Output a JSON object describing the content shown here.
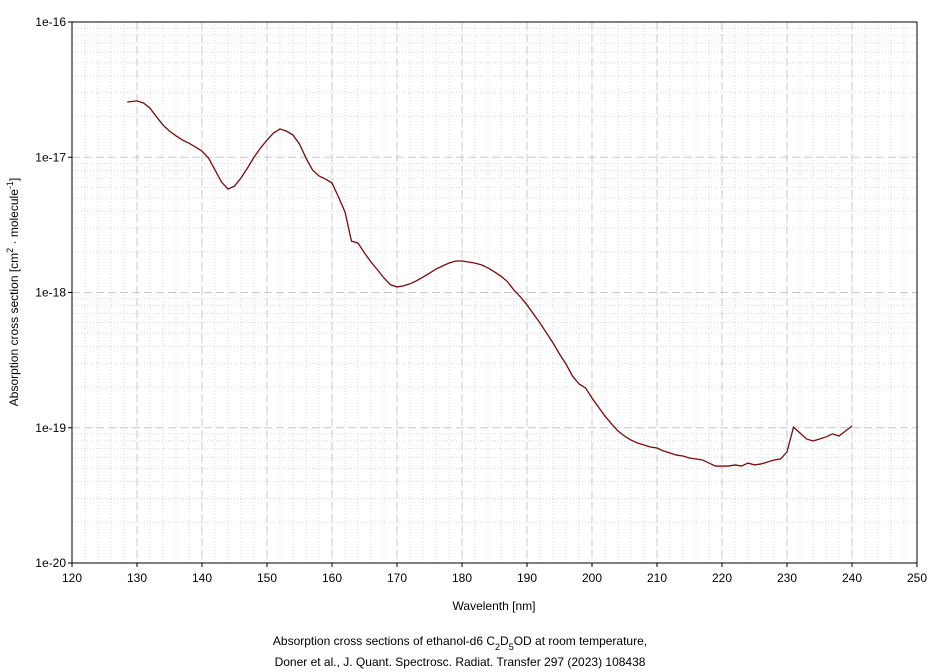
{
  "chart_data": {
    "type": "line",
    "y_label": [
      {
        "text": "Absorption cross section [cm"
      },
      {
        "text": "2",
        "shift": "super"
      },
      {
        "text": " · molecule"
      },
      {
        "text": "-1",
        "shift": "super"
      },
      {
        "text": "]"
      }
    ],
    "x_label": "Wavelenth [nm]",
    "caption": [
      [
        {
          "text": "Absorption cross sections of ethanol-d6 C"
        },
        {
          "text": "2",
          "shift": "sub"
        },
        {
          "text": "D"
        },
        {
          "text": "5",
          "shift": "sub"
        },
        {
          "text": "OD at room temperature,"
        }
      ],
      [
        {
          "text": "Doner et al., J. Quant. Spectrosc. Radiat. Transfer 297 (2023) 108438"
        }
      ]
    ],
    "color": "#7b0a0a",
    "log_y": true,
    "grid": true,
    "minor_grid": true,
    "xlim": [
      120,
      250
    ],
    "xticks": [
      120,
      130,
      140,
      150,
      160,
      170,
      180,
      190,
      200,
      210,
      220,
      230,
      240,
      250
    ],
    "ylim": [
      1e-20,
      1e-16
    ],
    "yticks": [
      1e-20,
      1e-19,
      1e-18,
      1e-17,
      1e-16
    ],
    "x": [
      128.5,
      130,
      131,
      132,
      133,
      134,
      135,
      136,
      137,
      138,
      139,
      140,
      141,
      142,
      143,
      144,
      145,
      146,
      147,
      148,
      149,
      150,
      151,
      152,
      153,
      154,
      155,
      156,
      157,
      158,
      159,
      160,
      161,
      162,
      163,
      164,
      165,
      166,
      167,
      168,
      169,
      170,
      171,
      172,
      173,
      174,
      175,
      176,
      177,
      178,
      179,
      180,
      181,
      182,
      183,
      184,
      185,
      186,
      187,
      188,
      189,
      190,
      191,
      192,
      193,
      194,
      195,
      196,
      197,
      198,
      199,
      200,
      201,
      202,
      203,
      204,
      205,
      206,
      207,
      208,
      209,
      210,
      211,
      212,
      213,
      214,
      215,
      216,
      217,
      218,
      219,
      220,
      221,
      222,
      223,
      224,
      225,
      226,
      227,
      228,
      229,
      230,
      231,
      232,
      233,
      234,
      235,
      236,
      237,
      238,
      239,
      240
    ],
    "values": [
      2.56e-17,
      2.61e-17,
      2.52e-17,
      2.31e-17,
      1.99e-17,
      1.73e-17,
      1.56e-17,
      1.44e-17,
      1.34e-17,
      1.27e-17,
      1.19e-17,
      1.11e-17,
      9.87e-18,
      8.05e-18,
      6.56e-18,
      5.82e-18,
      6.12e-18,
      7.03e-18,
      8.33e-18,
      1e-17,
      1.17e-17,
      1.34e-17,
      1.51e-17,
      1.62e-17,
      1.56e-17,
      1.46e-17,
      1.25e-17,
      9.87e-18,
      8.05e-18,
      7.27e-18,
      6.9e-18,
      6.45e-18,
      5.08e-18,
      3.94e-18,
      2.4e-18,
      2.32e-18,
      1.96e-18,
      1.68e-18,
      1.47e-18,
      1.28e-18,
      1.14e-18,
      1.1e-18,
      1.12e-18,
      1.16e-18,
      1.22e-18,
      1.3e-18,
      1.39e-18,
      1.49e-18,
      1.57e-18,
      1.65e-18,
      1.71e-18,
      1.71e-18,
      1.68e-18,
      1.65e-18,
      1.6e-18,
      1.52e-18,
      1.42e-18,
      1.32e-18,
      1.2e-18,
      1.04e-18,
      9.27e-19,
      8.09e-19,
      6.94e-19,
      5.95e-19,
      5.02e-19,
      4.24e-19,
      3.51e-19,
      2.96e-19,
      2.41e-19,
      2.11e-19,
      1.97e-19,
      1.66e-19,
      1.42e-19,
      1.22e-19,
      1.07e-19,
      9.46e-20,
      8.69e-20,
      8.11e-20,
      7.71e-20,
      7.45e-20,
      7.21e-20,
      7.08e-20,
      6.73e-20,
      6.5e-20,
      6.28e-20,
      6.18e-20,
      5.97e-20,
      5.87e-20,
      5.78e-20,
      5.48e-20,
      5.21e-20,
      5.21e-20,
      5.21e-20,
      5.31e-20,
      5.21e-20,
      5.48e-20,
      5.31e-20,
      5.4e-20,
      5.58e-20,
      5.78e-20,
      5.87e-20,
      6.62e-20,
      1.01e-19,
      9.15e-20,
      8.26e-20,
      7.98e-20,
      8.26e-20,
      8.55e-20,
      9e-20,
      8.69e-20,
      9.46e-20,
      1.03e-19
    ]
  }
}
